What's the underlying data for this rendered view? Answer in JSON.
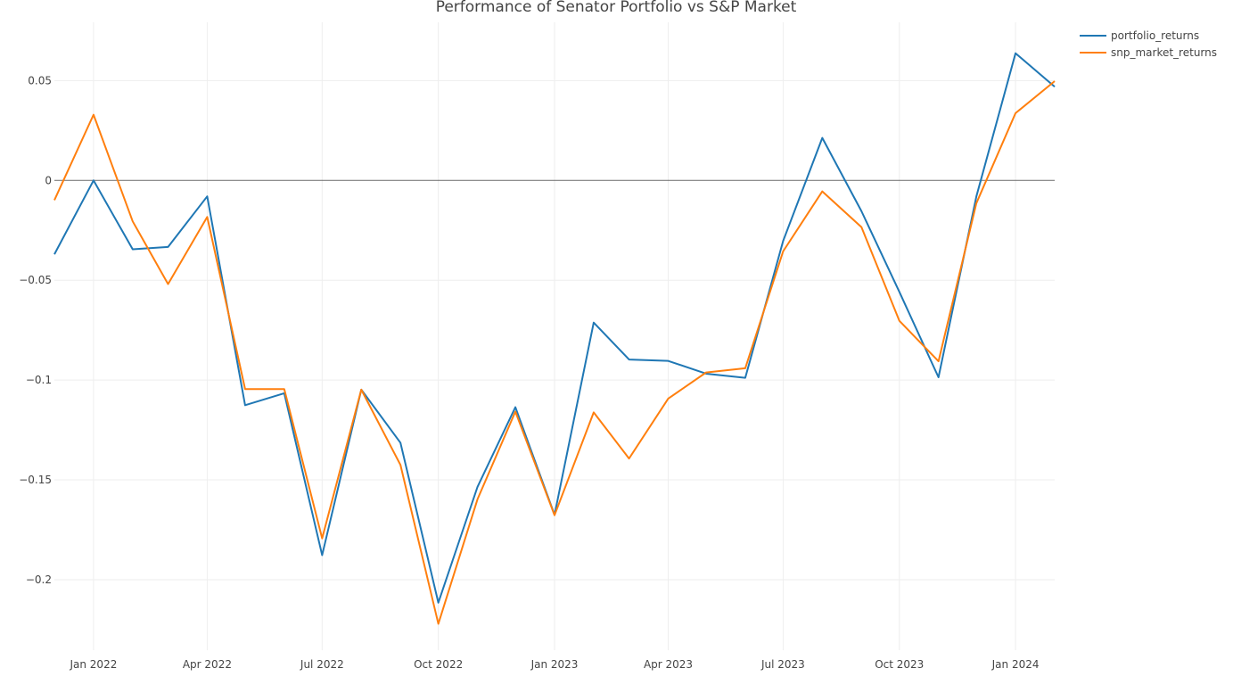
{
  "chart_data": {
    "type": "line",
    "title": "Performance of Senator Portfolio vs S&P Market",
    "xlabel": "",
    "ylabel": "",
    "x": [
      "2021-12-01",
      "2022-01-01",
      "2022-02-01",
      "2022-03-01",
      "2022-04-01",
      "2022-05-01",
      "2022-06-01",
      "2022-07-01",
      "2022-08-01",
      "2022-09-01",
      "2022-10-01",
      "2022-11-01",
      "2022-12-01",
      "2023-01-01",
      "2023-02-01",
      "2023-03-01",
      "2023-04-01",
      "2023-05-01",
      "2023-06-01",
      "2023-07-01",
      "2023-08-01",
      "2023-09-01",
      "2023-10-01",
      "2023-11-01",
      "2023-12-01",
      "2024-01-01",
      "2024-02-01"
    ],
    "xlim": [
      "2021-12-01",
      "2024-02-01"
    ],
    "x_ticks": [
      {
        "date": "2022-01-01",
        "label": "Jan 2022"
      },
      {
        "date": "2022-04-01",
        "label": "Apr 2022"
      },
      {
        "date": "2022-07-01",
        "label": "Jul 2022"
      },
      {
        "date": "2022-10-01",
        "label": "Oct 2022"
      },
      {
        "date": "2023-01-01",
        "label": "Jan 2023"
      },
      {
        "date": "2023-04-01",
        "label": "Apr 2023"
      },
      {
        "date": "2023-07-01",
        "label": "Jul 2023"
      },
      {
        "date": "2023-10-01",
        "label": "Oct 2023"
      },
      {
        "date": "2024-01-01",
        "label": "Jan 2024"
      }
    ],
    "ylim": [
      -0.2353,
      0.0792
    ],
    "y_ticks": [
      {
        "value": 0.05,
        "label": "0.05"
      },
      {
        "value": 0,
        "label": "0"
      },
      {
        "value": -0.05,
        "label": "−0.05"
      },
      {
        "value": -0.1,
        "label": "−0.1"
      },
      {
        "value": -0.15,
        "label": "−0.15"
      },
      {
        "value": -0.2,
        "label": "−0.2"
      }
    ],
    "grid": true,
    "zero_line": true,
    "legend_position": "top-right",
    "series": [
      {
        "name": "portfolio_returns",
        "color": "#1f77b4",
        "values": [
          -0.037,
          0.0,
          -0.0345,
          -0.0333,
          -0.008,
          -0.1126,
          -0.1066,
          -0.1877,
          -0.1048,
          -0.1314,
          -0.2115,
          -0.1535,
          -0.1136,
          -0.1675,
          -0.0712,
          -0.0897,
          -0.0904,
          -0.0968,
          -0.0989,
          -0.0303,
          0.0213,
          -0.0154,
          -0.0558,
          -0.0986,
          -0.008,
          0.0637,
          0.0469
        ]
      },
      {
        "name": "snp_market_returns",
        "color": "#ff7f0e",
        "values": [
          -0.0099,
          0.0329,
          -0.0205,
          -0.0519,
          -0.0183,
          -0.1045,
          -0.1045,
          -0.1793,
          -0.1048,
          -0.1425,
          -0.2221,
          -0.1597,
          -0.1158,
          -0.1677,
          -0.1162,
          -0.1393,
          -0.1093,
          -0.0962,
          -0.0941,
          -0.0355,
          -0.0055,
          -0.0234,
          -0.0703,
          -0.0906,
          -0.0114,
          0.0337,
          0.0497
        ]
      }
    ]
  }
}
